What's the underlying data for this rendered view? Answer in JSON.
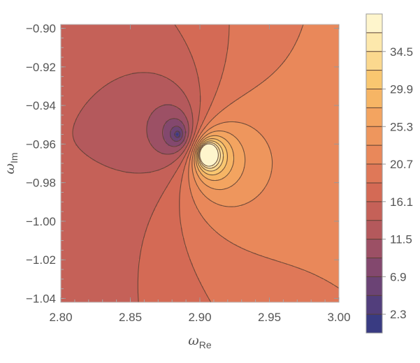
{
  "chart_data": {
    "type": "contour",
    "xlabel": "ω",
    "xlabel_sub": "Re",
    "ylabel": "ω",
    "ylabel_sub": "Im",
    "xlim": [
      2.8,
      3.0
    ],
    "ylim": [
      -1.042,
      -0.898
    ],
    "x_ticks": [
      {
        "v": 2.8,
        "label": "2.80"
      },
      {
        "v": 2.85,
        "label": "2.85"
      },
      {
        "v": 2.9,
        "label": "2.90"
      },
      {
        "v": 2.95,
        "label": "2.95"
      },
      {
        "v": 3.0,
        "label": "3.00"
      }
    ],
    "y_ticks": [
      {
        "v": -0.9,
        "label": "−0.90"
      },
      {
        "v": -0.92,
        "label": "−0.92"
      },
      {
        "v": -0.94,
        "label": "−0.94"
      },
      {
        "v": -0.96,
        "label": "−0.96"
      },
      {
        "v": -0.98,
        "label": "−0.98"
      },
      {
        "v": -1.0,
        "label": "−1.00"
      },
      {
        "v": -1.02,
        "label": "−1.02"
      },
      {
        "v": -1.04,
        "label": "−1.04"
      }
    ],
    "colorbar": {
      "range": [
        0,
        39.1
      ],
      "levels": [
        0,
        2.3,
        4.6,
        6.9,
        9.2,
        11.5,
        13.8,
        16.1,
        18.4,
        20.7,
        23.0,
        25.3,
        27.6,
        29.9,
        32.2,
        34.5,
        36.8,
        39.1
      ],
      "labeled_ticks": [
        {
          "v": 2.3,
          "label": "2.3"
        },
        {
          "v": 6.9,
          "label": "6.9"
        },
        {
          "v": 11.5,
          "label": "11.5"
        },
        {
          "v": 16.1,
          "label": "16.1"
        },
        {
          "v": 20.7,
          "label": "20.7"
        },
        {
          "v": 25.3,
          "label": "25.3"
        },
        {
          "v": 29.9,
          "label": "29.9"
        },
        {
          "v": 34.5,
          "label": "34.5"
        }
      ],
      "color_stops": [
        "#2c3a85",
        "#5c3f7a",
        "#8a4a6c",
        "#b85a5a",
        "#d56a55",
        "#e9875a",
        "#f2a15f",
        "#f8c268",
        "#fde3a0",
        "#fffcdc"
      ]
    },
    "features": {
      "zero": {
        "x": 2.884,
        "y": -0.955,
        "value": 0.0
      },
      "pole": {
        "x": 2.905,
        "y": -0.965
      },
      "base_value": 16.5,
      "line_color": "#5a3f32"
    }
  }
}
